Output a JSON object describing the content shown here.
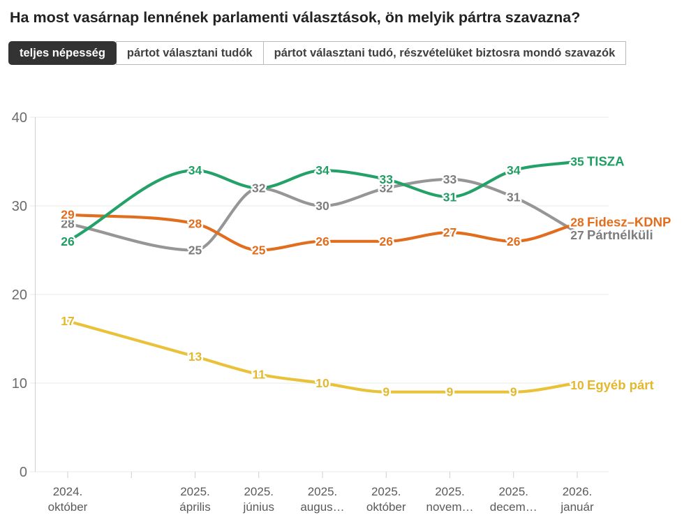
{
  "title": "Ha most vasárnap lennének parlamenti választások, ön melyik pártra szavazna?",
  "tabs": [
    {
      "label": "teljes népesség",
      "active": true
    },
    {
      "label": "pártot választani tudók",
      "active": false
    },
    {
      "label": "pártot választani tudó, részvételüket biztosra mondó szavazók",
      "active": false
    }
  ],
  "chart_data": {
    "type": "line",
    "x_tick_labels": [
      [
        "2024.",
        "október"
      ],
      [
        "2025.",
        "április"
      ],
      [
        "2025.",
        "június"
      ],
      [
        "2025.",
        "augus…"
      ],
      [
        "2025.",
        "október"
      ],
      [
        "2025.",
        "novem…"
      ],
      [
        "2025.",
        "decem…"
      ],
      [
        "2026.",
        "január"
      ]
    ],
    "series": [
      {
        "name": "TISZA",
        "color": "#23a168",
        "label_color": "#1f9d62",
        "values": [
          26,
          34,
          32,
          34,
          33,
          31,
          34,
          35
        ],
        "hidden_label_indices": [
          2
        ]
      },
      {
        "name": "Fidesz–KDNP",
        "color": "#e16e1e",
        "label_color": "#e16e1e",
        "values": [
          29,
          28,
          25,
          26,
          26,
          27,
          26,
          28
        ],
        "hidden_label_indices": []
      },
      {
        "name": "Pártnélküli",
        "color": "#969696",
        "label_color": "#7d7d7d",
        "values": [
          28,
          25,
          32,
          30,
          32,
          33,
          31,
          27
        ],
        "hidden_label_indices": []
      },
      {
        "name": "Egyéb párt",
        "color": "#eac23a",
        "label_color": "#e3b82e",
        "values": [
          17,
          13,
          11,
          10,
          9,
          9,
          9,
          10
        ],
        "hidden_label_indices": []
      }
    ],
    "ylim": [
      0,
      40
    ],
    "yticks": [
      0,
      10,
      20,
      30,
      40
    ],
    "grid": true,
    "legend_position": "end-of-line",
    "value_labels_shown": true
  }
}
